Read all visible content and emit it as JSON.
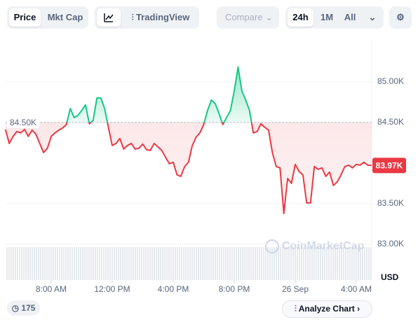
{
  "toolbar": {
    "price": "Price",
    "mkt_cap": "Mkt Cap",
    "tradingview": "TradingView",
    "compare": "Compare",
    "ranges": [
      "24h",
      "1M",
      "All"
    ]
  },
  "chart_data": {
    "type": "line",
    "x": [
      5,
      5.25,
      5.5,
      5.75,
      6,
      6.25,
      6.5,
      6.75,
      7,
      7.25,
      7.5,
      7.75,
      8,
      8.25,
      8.5,
      8.75,
      9,
      9.25,
      9.5,
      9.75,
      10,
      10.25,
      10.5,
      10.75,
      11,
      11.25,
      11.5,
      11.75,
      12,
      12.25,
      12.5,
      12.75,
      13,
      13.25,
      13.5,
      13.75,
      14,
      14.25,
      14.5,
      14.75,
      15,
      15.25,
      15.5,
      15.75,
      16,
      16.25,
      16.5,
      16.75,
      17,
      17.25,
      17.5,
      17.75,
      18,
      18.25,
      18.5,
      18.75,
      19,
      19.25,
      19.5,
      19.75,
      20,
      20.25,
      20.5,
      20.75,
      21,
      21.25,
      21.5,
      21.75,
      22,
      22.25,
      22.5,
      22.75,
      23,
      23.25,
      23.5,
      23.75,
      24,
      24.25,
      24.5,
      24.75,
      25,
      25.25,
      25.5,
      25.75,
      26,
      26.25,
      26.5,
      26.75,
      27,
      27.25,
      27.5,
      27.75,
      28,
      28.25,
      28.5,
      28.75,
      29
    ],
    "values": [
      84414,
      84241,
      84328,
      84388,
      84371,
      84414,
      84328,
      84405,
      84354,
      84241,
      84129,
      84181,
      84328,
      84371,
      84405,
      84431,
      84474,
      84672,
      84560,
      84586,
      84647,
      84716,
      84483,
      84526,
      84802,
      84802,
      84672,
      84440,
      84216,
      84241,
      84302,
      84172,
      84216,
      84241,
      84172,
      84181,
      84233,
      84164,
      84155,
      84241,
      84198,
      84155,
      84069,
      83991,
      84009,
      83854,
      83836,
      83957,
      84009,
      84216,
      84319,
      84371,
      84474,
      84647,
      84776,
      84733,
      84612,
      84474,
      84560,
      84647,
      84888,
      85181,
      84888,
      84776,
      84647,
      84371,
      84388,
      84483,
      84440,
      84405,
      84129,
      83957,
      83940,
      83379,
      83810,
      83750,
      83983,
      83897,
      83854,
      83509,
      83509,
      83957,
      83922,
      83940,
      83836,
      83888,
      83724,
      83767,
      83854,
      83957,
      83974,
      83940,
      83983,
      83974,
      84009,
      83974,
      83970
    ],
    "up_color": "#16c784",
    "down_color": "#ea3943",
    "xlim": [
      5,
      29
    ],
    "xticks": [
      {
        "value": 8,
        "label": "8:00 AM"
      },
      {
        "value": 12,
        "label": "12:00 PM"
      },
      {
        "value": 16,
        "label": "4:00 PM"
      },
      {
        "value": 20,
        "label": "8:00 PM"
      },
      {
        "value": 24,
        "label": "26 Sep"
      },
      {
        "value": 28,
        "label": "4:00 AM"
      }
    ],
    "ylim": [
      82560,
      85490
    ],
    "yticks": [
      {
        "value": 83000,
        "label": "83.00K"
      },
      {
        "value": 83500,
        "label": "83.50K"
      },
      {
        "value": 84500,
        "label": "84.50K"
      },
      {
        "value": 85000,
        "label": "85.00K"
      }
    ],
    "y_unit": "USD",
    "baseline": {
      "value": 84500,
      "label": "84.50K"
    },
    "current": {
      "value": 83970,
      "label": "83.97K"
    },
    "grid": true
  },
  "watermark": "CoinMarketCap",
  "footer": {
    "comments": 175,
    "analyze": "Analyze Chart"
  }
}
